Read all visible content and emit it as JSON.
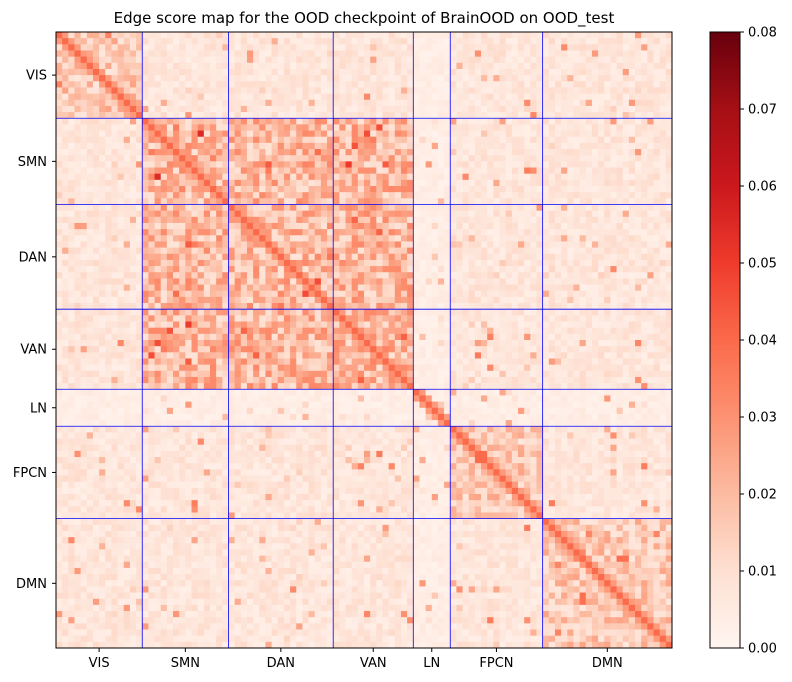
{
  "chart_data": {
    "type": "heatmap",
    "title": "Edge score map for the OOD checkpoint of BrainOOD on OOD_test",
    "xlabel": "",
    "ylabel": "",
    "n_regions": 100,
    "networks": [
      {
        "name": "VIS",
        "start": 0,
        "end": 14
      },
      {
        "name": "SMN",
        "start": 14,
        "end": 28
      },
      {
        "name": "DAN",
        "start": 28,
        "end": 45
      },
      {
        "name": "VAN",
        "start": 45,
        "end": 58
      },
      {
        "name": "LN",
        "start": 58,
        "end": 64
      },
      {
        "name": "FPCN",
        "start": 64,
        "end": 79
      },
      {
        "name": "DMN",
        "start": 79,
        "end": 100
      }
    ],
    "x_tick_labels": [
      "VIS",
      "SMN",
      "DAN",
      "VAN",
      "LN",
      "FPCN",
      "DMN"
    ],
    "y_tick_labels": [
      "VIS",
      "SMN",
      "DAN",
      "VAN",
      "LN",
      "FPCN",
      "DMN"
    ],
    "boundary_indices": [
      14,
      28,
      45,
      58,
      64,
      79
    ],
    "boundary_color": "#0000ff",
    "colorbar": {
      "colormap": "Reds",
      "min": 0.0,
      "max": 0.08,
      "ticks": [
        "0.00",
        "0.01",
        "0.02",
        "0.03",
        "0.04",
        "0.05",
        "0.06",
        "0.07",
        "0.08"
      ],
      "tick_values": [
        0.0,
        0.01,
        0.02,
        0.03,
        0.04,
        0.05,
        0.06,
        0.07,
        0.08
      ]
    },
    "typical_values": {
      "background": 0.008,
      "within_network": 0.018,
      "SMN_DAN_VAN_blocks": 0.03,
      "diagonal": 0.04,
      "max_observed": 0.065,
      "LN_row_col": 0.004
    }
  }
}
